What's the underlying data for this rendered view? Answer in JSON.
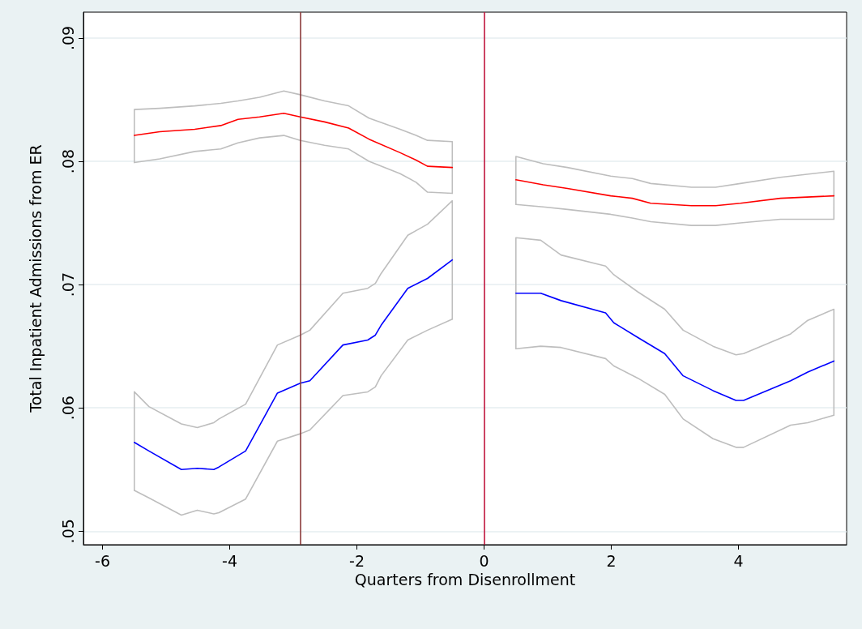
{
  "chart_data": {
    "type": "line",
    "xlabel": "Quarters from Disenrollment",
    "ylabel": "Total Inpatient Admissions from ER",
    "xlim": [
      -6.3,
      5.7
    ],
    "xticks": [
      -6,
      -4,
      -2,
      0,
      2,
      4
    ],
    "ylim": [
      0.0489,
      0.0921
    ],
    "yticks": [
      {
        "value": 0.05,
        "label": ".05"
      },
      {
        "value": 0.06,
        "label": ".06"
      },
      {
        "value": 0.07,
        "label": ".07"
      },
      {
        "value": 0.08,
        "label": ".08"
      },
      {
        "value": 0.09,
        "label": ".09"
      }
    ],
    "grid": "y",
    "marker": "none",
    "line_style": "solid",
    "ref_lines": [
      {
        "axis": "x",
        "value": -2.89,
        "color": "#8b3a3a"
      },
      {
        "axis": "x",
        "value": 0,
        "color": "#c0143c"
      }
    ],
    "series": [
      {
        "color": "#bebebe",
        "x": [
          -5.5,
          -5.5,
          -5.1,
          -4.55,
          -4.14,
          -3.87,
          -3.53,
          -3.15,
          -2.89,
          -2.51,
          -2.13,
          -1.81,
          -1.32,
          -1.07,
          -0.89,
          -0.5,
          -0.5,
          0,
          0.5,
          0.5,
          0.93,
          1.31,
          1.99,
          2.33,
          2.62,
          3.26,
          3.64,
          4.03,
          4.66,
          5.5,
          5.5
        ],
        "values": [
          0.0799,
          0.0842,
          0.0843,
          0.0845,
          0.0847,
          0.0849,
          0.0852,
          0.0857,
          0.0854,
          0.0849,
          0.0845,
          0.0835,
          0.0826,
          0.0821,
          0.0817,
          0.0816,
          0.0774,
          null,
          0.0765,
          0.0804,
          0.0798,
          0.0795,
          0.0788,
          0.0786,
          0.0782,
          0.0779,
          0.0779,
          0.0782,
          0.0787,
          0.0792,
          0.0753
        ]
      },
      {
        "color": "#bebebe",
        "x": [
          -5.5,
          -5.1,
          -4.55,
          -4.14,
          -3.87,
          -3.53,
          -3.15,
          -2.89,
          -2.51,
          -2.13,
          -1.81,
          -1.32,
          -1.07,
          -0.89,
          -0.5,
          0,
          0.5,
          0.93,
          1.31,
          1.99,
          2.33,
          2.62,
          3.26,
          3.64,
          4.03,
          4.66,
          5.5
        ],
        "values": [
          0.0799,
          0.0802,
          0.0808,
          0.081,
          0.0815,
          0.0819,
          0.0821,
          0.0817,
          0.0813,
          0.081,
          0.08,
          0.079,
          0.0783,
          0.0775,
          0.0774,
          null,
          0.0765,
          0.0763,
          0.0761,
          0.0757,
          0.0754,
          0.0751,
          0.0748,
          0.0748,
          0.075,
          0.0753,
          0.0753
        ]
      },
      {
        "color": "#bebebe",
        "x": [
          -5.5,
          -5.5,
          -5.27,
          -4.76,
          -4.51,
          -4.25,
          -4.17,
          -3.75,
          -3.25,
          -2.89,
          -2.74,
          -2.22,
          -1.83,
          -1.71,
          -1.62,
          -1.2,
          -0.89,
          -0.5,
          -0.5,
          0,
          0.5,
          0.5,
          0.89,
          1.21,
          1.91,
          2.04,
          2.42,
          2.84,
          3.13,
          3.6,
          3.96,
          4.08,
          4.82,
          5.09,
          5.5,
          5.5
        ],
        "values": [
          0.0533,
          0.0613,
          0.0601,
          0.0587,
          0.0584,
          0.0588,
          0.0591,
          0.0603,
          0.0651,
          0.0659,
          0.0663,
          0.0693,
          0.0697,
          0.0701,
          0.0709,
          0.074,
          0.0749,
          0.0768,
          0.0672,
          null,
          0.0648,
          0.0738,
          0.0736,
          0.0724,
          0.0715,
          0.0708,
          0.0694,
          0.068,
          0.0663,
          0.065,
          0.0643,
          0.0644,
          0.066,
          0.0671,
          0.068,
          0.0594
        ]
      },
      {
        "color": "#bebebe",
        "x": [
          -5.5,
          -5.27,
          -4.76,
          -4.51,
          -4.25,
          -4.17,
          -3.75,
          -3.25,
          -2.89,
          -2.74,
          -2.22,
          -1.83,
          -1.71,
          -1.62,
          -1.2,
          -0.89,
          -0.5,
          0,
          0.5,
          0.89,
          1.21,
          1.91,
          2.04,
          2.42,
          2.84,
          3.13,
          3.6,
          3.96,
          4.08,
          4.82,
          5.09,
          5.5
        ],
        "values": [
          0.0533,
          0.0527,
          0.0513,
          0.0517,
          0.0514,
          0.0515,
          0.0526,
          0.0573,
          0.0579,
          0.0582,
          0.061,
          0.0613,
          0.0617,
          0.0626,
          0.0655,
          0.0663,
          0.0672,
          null,
          0.0648,
          0.065,
          0.0649,
          0.064,
          0.0634,
          0.0624,
          0.0611,
          0.0591,
          0.0575,
          0.0568,
          0.0568,
          0.0586,
          0.0588,
          0.0594
        ]
      },
      {
        "color": "#ff0000",
        "x": [
          -5.5,
          -5.1,
          -4.55,
          -4.14,
          -3.87,
          -3.53,
          -3.15,
          -2.89,
          -2.51,
          -2.13,
          -1.81,
          -1.32,
          -1.07,
          -0.89,
          -0.5,
          0,
          0.5,
          0.93,
          1.31,
          1.99,
          2.33,
          2.62,
          3.26,
          3.64,
          4.03,
          4.66,
          5.5
        ],
        "values": [
          0.0821,
          0.0824,
          0.0826,
          0.0829,
          0.0834,
          0.0836,
          0.0839,
          0.0836,
          0.0832,
          0.0827,
          0.0818,
          0.0807,
          0.0801,
          0.0796,
          0.0795,
          null,
          0.0785,
          0.0781,
          0.0778,
          0.0772,
          0.077,
          0.0766,
          0.0764,
          0.0764,
          0.0766,
          0.077,
          0.0772
        ]
      },
      {
        "color": "#0000ff",
        "x": [
          -5.5,
          -5.27,
          -4.76,
          -4.51,
          -4.25,
          -4.17,
          -3.75,
          -3.25,
          -2.89,
          -2.74,
          -2.22,
          -1.83,
          -1.71,
          -1.62,
          -1.2,
          -0.89,
          -0.5,
          0,
          0.5,
          0.89,
          1.21,
          1.91,
          2.04,
          2.42,
          2.84,
          3.13,
          3.6,
          3.96,
          4.08,
          4.82,
          5.09,
          5.5
        ],
        "values": [
          0.0572,
          0.0565,
          0.055,
          0.0551,
          0.055,
          0.0552,
          0.0565,
          0.0612,
          0.062,
          0.0622,
          0.0651,
          0.0655,
          0.0659,
          0.0667,
          0.0697,
          0.0705,
          0.072,
          null,
          0.0693,
          0.0693,
          0.0687,
          0.0677,
          0.0669,
          0.0657,
          0.0644,
          0.0626,
          0.0614,
          0.0606,
          0.0606,
          0.0622,
          0.0629,
          0.0638
        ]
      }
    ]
  }
}
